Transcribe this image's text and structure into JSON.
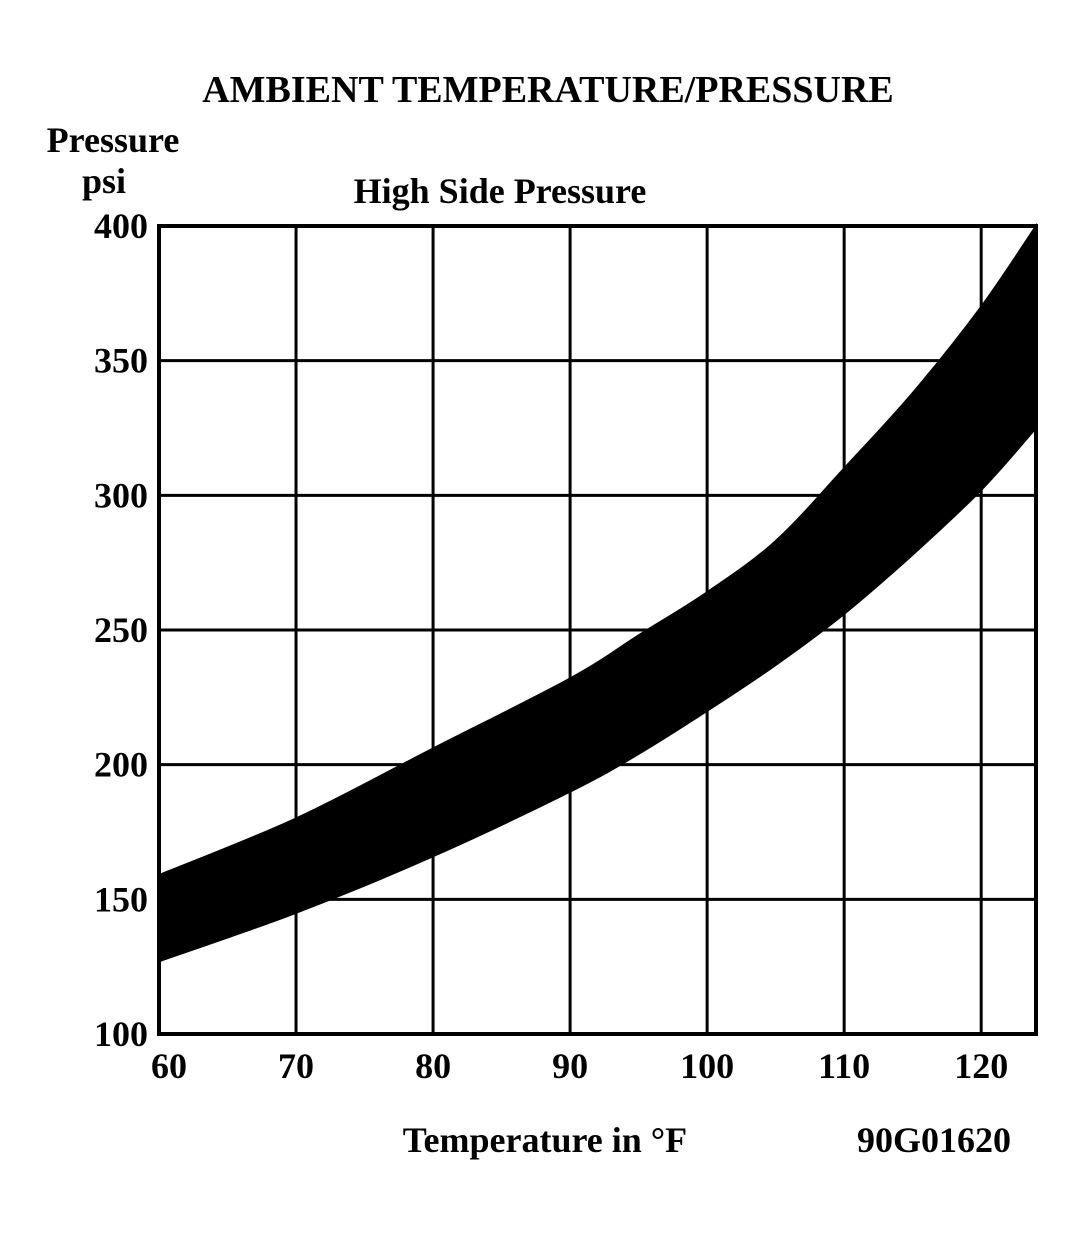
{
  "chart_data": {
    "type": "area",
    "title": "AMBIENT TEMPERATURE/PRESSURE",
    "subtitle": "High Side Pressure",
    "ylabel_line1": "Pressure",
    "ylabel_line2": "psi",
    "xlabel": "Temperature in °F",
    "figure_code": "90G01620",
    "xlim": [
      60,
      124
    ],
    "ylim": [
      100,
      400
    ],
    "x_ticks": [
      60,
      70,
      80,
      90,
      100,
      110,
      120
    ],
    "y_ticks": [
      100,
      150,
      200,
      250,
      300,
      350,
      400
    ],
    "grid": true,
    "series": [
      {
        "values_upper": [
          [
            60,
            159
          ],
          [
            70,
            180
          ],
          [
            80,
            206
          ],
          [
            90,
            232
          ],
          [
            95,
            248
          ],
          [
            100,
            264
          ],
          [
            105,
            283
          ],
          [
            110,
            310
          ],
          [
            115,
            338
          ],
          [
            120,
            370
          ],
          [
            124,
            400
          ]
        ],
        "values_lower": [
          [
            60,
            127
          ],
          [
            70,
            145
          ],
          [
            80,
            166
          ],
          [
            90,
            190
          ],
          [
            95,
            204
          ],
          [
            100,
            220
          ],
          [
            105,
            237
          ],
          [
            110,
            256
          ],
          [
            115,
            278
          ],
          [
            120,
            302
          ],
          [
            124,
            325
          ]
        ],
        "color": "#000000"
      }
    ]
  }
}
